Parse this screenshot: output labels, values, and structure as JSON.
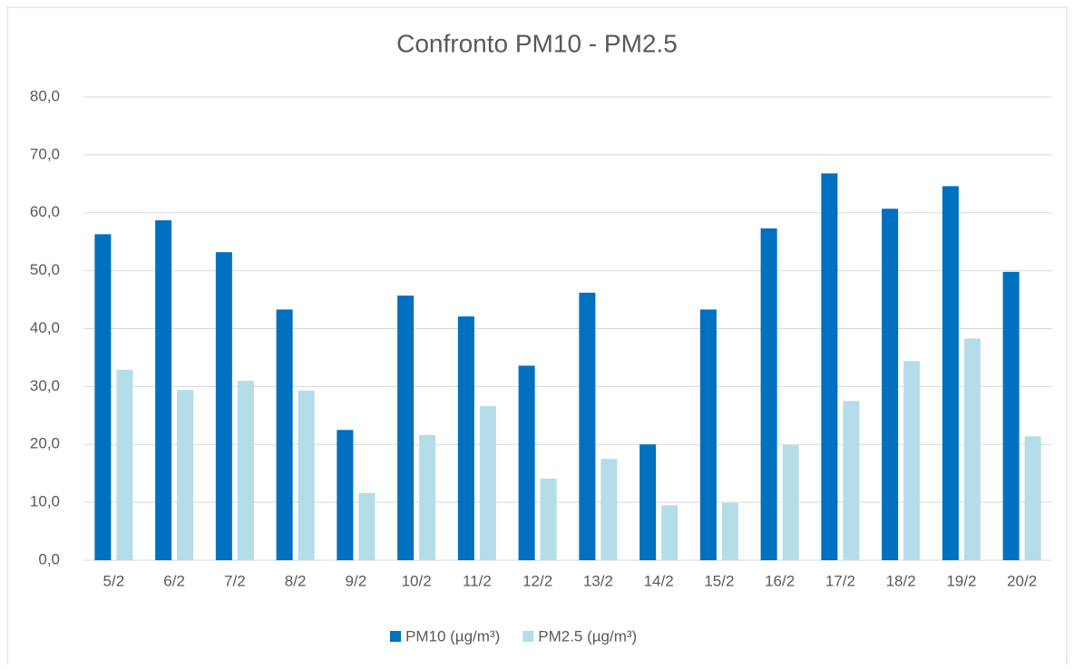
{
  "chart_data": {
    "type": "bar",
    "title": "Confronto PM10 - PM2.5",
    "categories": [
      "5/2",
      "6/2",
      "7/2",
      "8/2",
      "9/2",
      "10/2",
      "11/2",
      "12/2",
      "13/2",
      "14/2",
      "15/2",
      "16/2",
      "17/2",
      "18/2",
      "19/2",
      "20/2"
    ],
    "series": [
      {
        "name": "PM10 (µg/m³)",
        "color": "#0070c0",
        "values": [
          56.3,
          58.7,
          53.2,
          43.3,
          22.5,
          45.7,
          42.1,
          33.6,
          46.2,
          20.0,
          43.3,
          57.3,
          66.8,
          60.7,
          64.6,
          49.8
        ]
      },
      {
        "name": "PM2.5 (µg/m³)",
        "color": "#b4dde8",
        "values": [
          32.9,
          29.4,
          31.0,
          29.3,
          11.6,
          21.6,
          26.6,
          14.1,
          17.5,
          9.5,
          9.9,
          19.9,
          27.5,
          34.4,
          38.3,
          21.4
        ]
      }
    ],
    "ylim": [
      0,
      80
    ],
    "yticks": [
      {
        "value": 0,
        "label": "0,0"
      },
      {
        "value": 10,
        "label": "10,0"
      },
      {
        "value": 20,
        "label": "20,0"
      },
      {
        "value": 30,
        "label": "30,0"
      },
      {
        "value": 40,
        "label": "40,0"
      },
      {
        "value": 50,
        "label": "50,0"
      },
      {
        "value": 60,
        "label": "60,0"
      },
      {
        "value": 70,
        "label": "70,0"
      },
      {
        "value": 80,
        "label": "80,0"
      }
    ],
    "grid": true,
    "legend": "bottom"
  }
}
